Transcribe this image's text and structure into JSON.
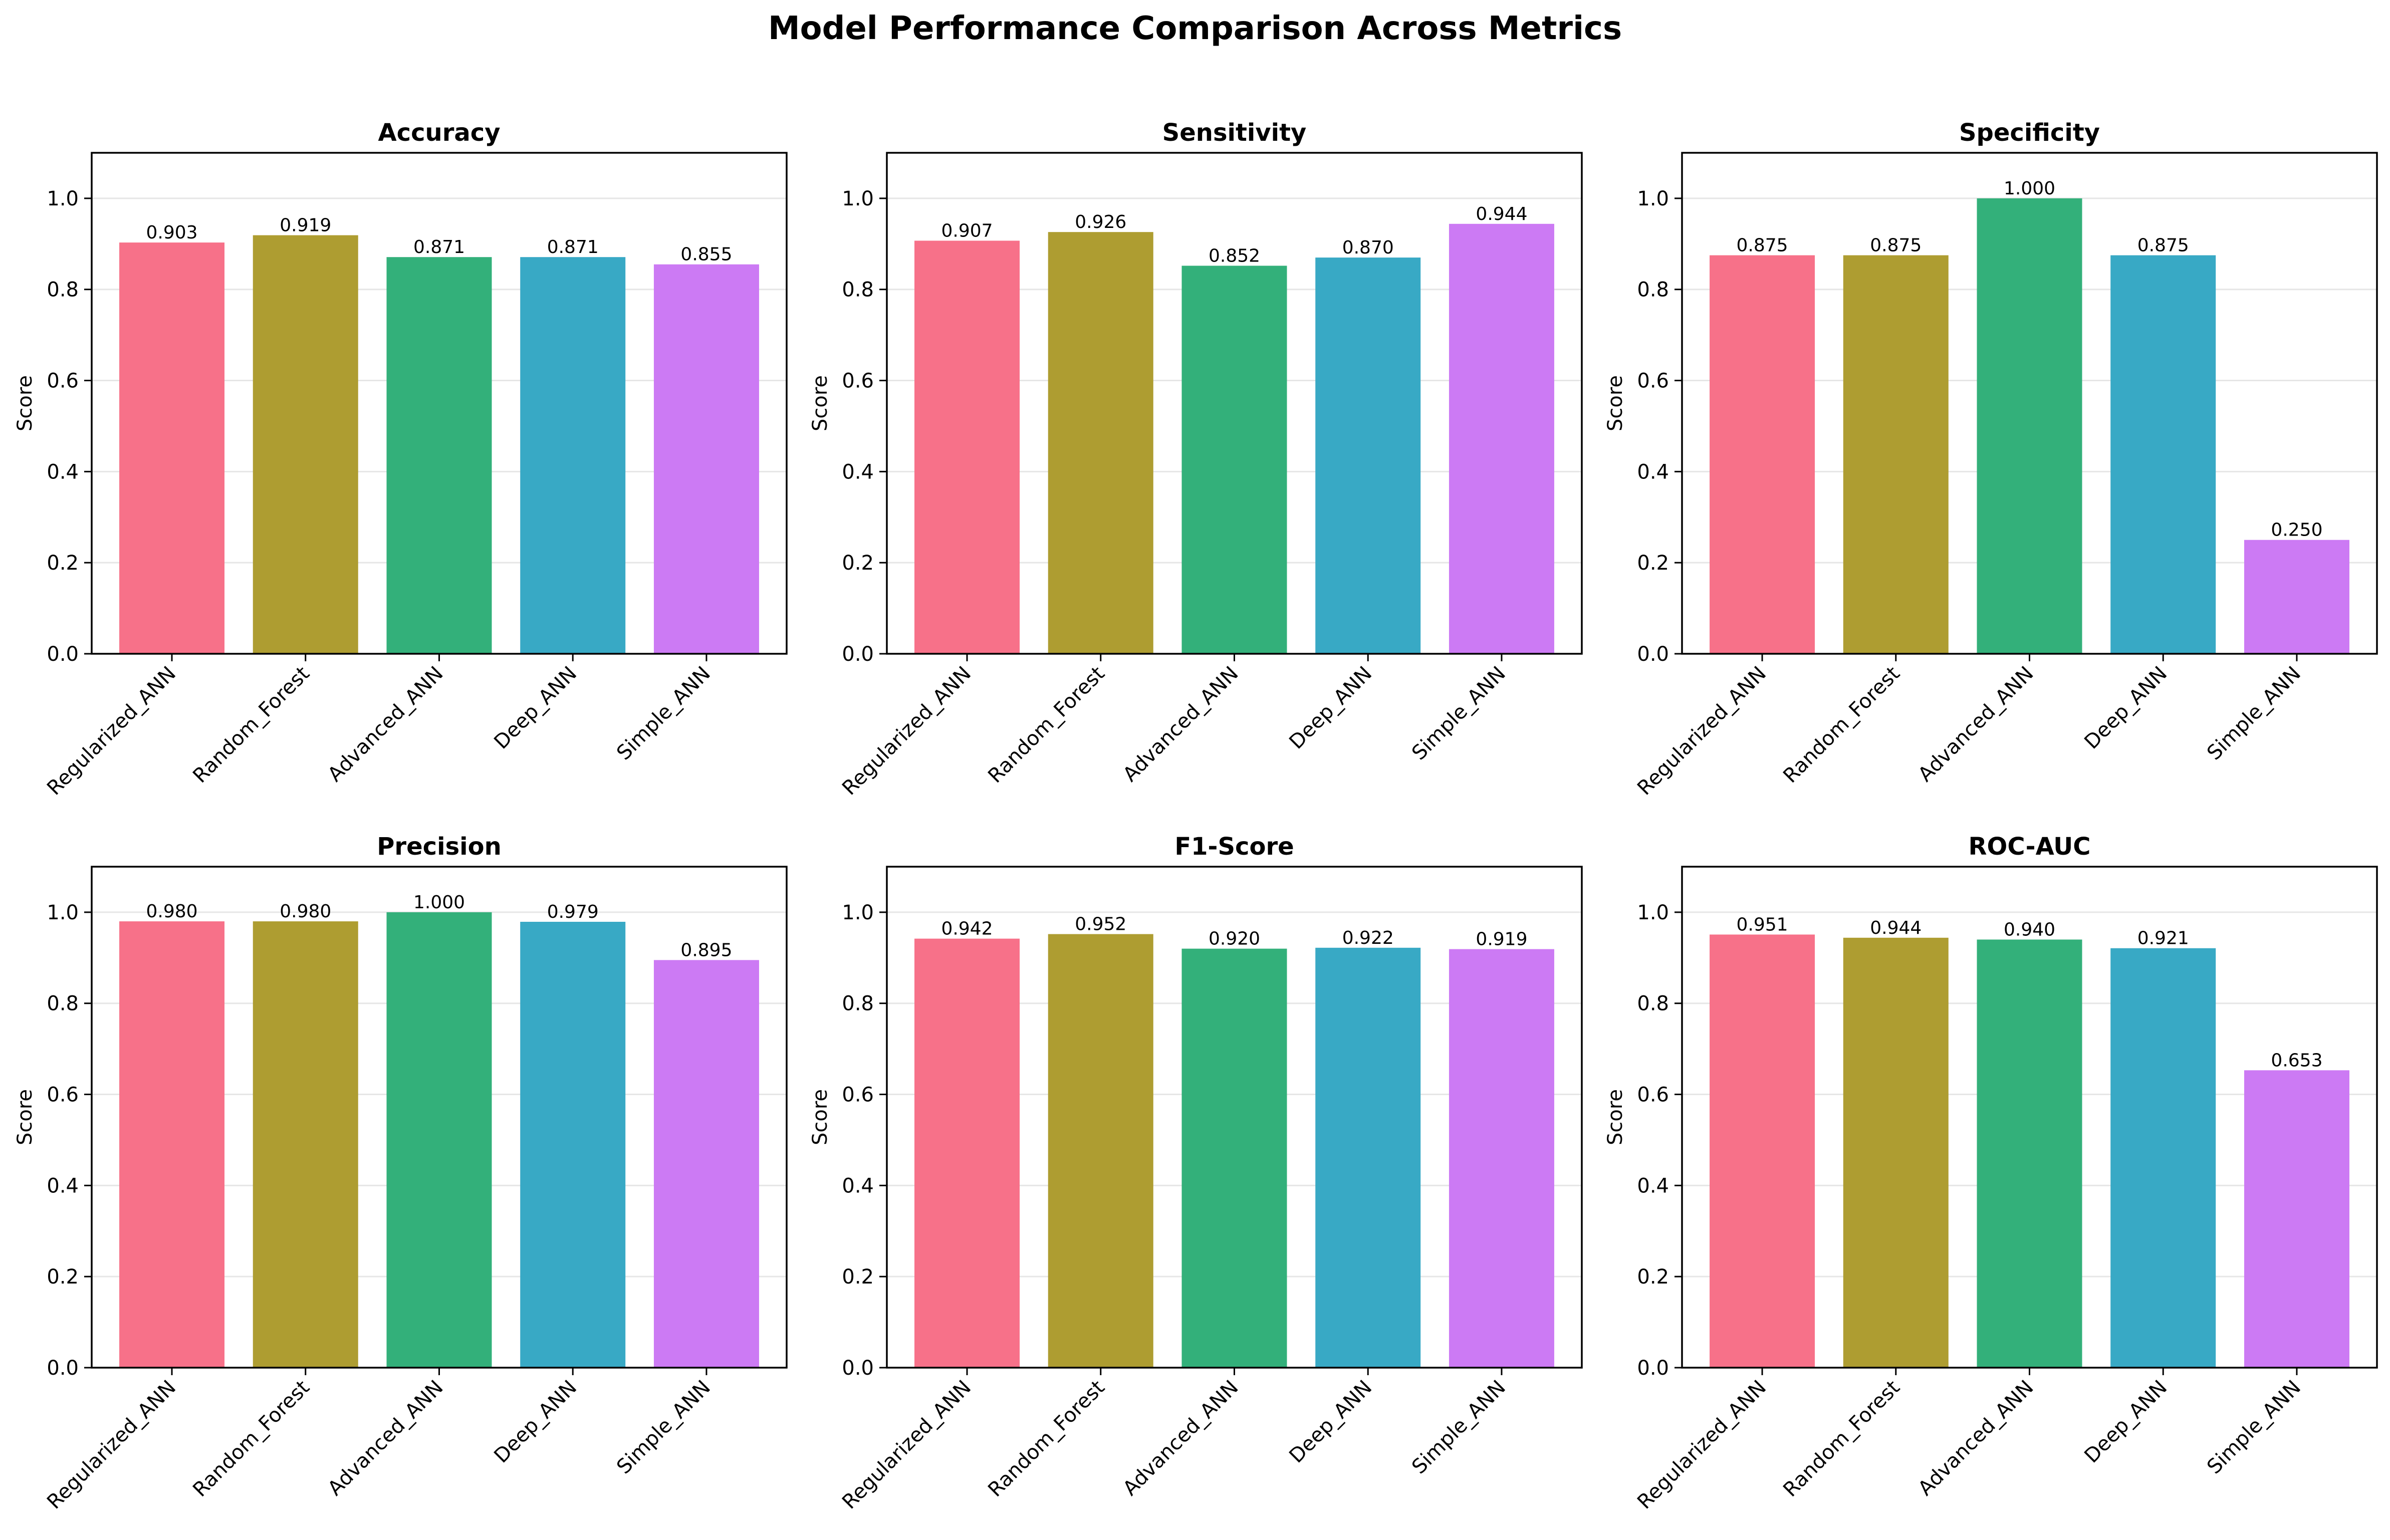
{
  "figure": {
    "suptitle": "Model Performance Comparison Across Metrics"
  },
  "style": {
    "bar_colors": [
      "#f77189",
      "#ae9d31",
      "#33b07a",
      "#38a9c5",
      "#cc7af4"
    ],
    "grid_color": "#e6e6e6",
    "axis_color": "#000000"
  },
  "chart_data": [
    {
      "type": "bar",
      "title": "Accuracy",
      "ylabel": "Score",
      "categories": [
        "Regularized_ANN",
        "Random_Forest",
        "Advanced_ANN",
        "Deep_ANN",
        "Simple_ANN"
      ],
      "values": [
        0.903,
        0.919,
        0.871,
        0.871,
        0.855
      ],
      "labels": [
        "0.903",
        "0.919",
        "0.871",
        "0.871",
        "0.855"
      ],
      "ylim": [
        0,
        1.1
      ],
      "yticks": [
        "0.0",
        "0.2",
        "0.4",
        "0.6",
        "0.8",
        "1.0"
      ],
      "grid": "y"
    },
    {
      "type": "bar",
      "title": "Sensitivity",
      "ylabel": "Score",
      "categories": [
        "Regularized_ANN",
        "Random_Forest",
        "Advanced_ANN",
        "Deep_ANN",
        "Simple_ANN"
      ],
      "values": [
        0.907,
        0.926,
        0.852,
        0.87,
        0.944
      ],
      "labels": [
        "0.907",
        "0.926",
        "0.852",
        "0.870",
        "0.944"
      ],
      "ylim": [
        0,
        1.1
      ],
      "yticks": [
        "0.0",
        "0.2",
        "0.4",
        "0.6",
        "0.8",
        "1.0"
      ],
      "grid": "y"
    },
    {
      "type": "bar",
      "title": "Specificity",
      "ylabel": "Score",
      "categories": [
        "Regularized_ANN",
        "Random_Forest",
        "Advanced_ANN",
        "Deep_ANN",
        "Simple_ANN"
      ],
      "values": [
        0.875,
        0.875,
        1.0,
        0.875,
        0.25
      ],
      "labels": [
        "0.875",
        "0.875",
        "1.000",
        "0.875",
        "0.250"
      ],
      "ylim": [
        0,
        1.1
      ],
      "yticks": [
        "0.0",
        "0.2",
        "0.4",
        "0.6",
        "0.8",
        "1.0"
      ],
      "grid": "y"
    },
    {
      "type": "bar",
      "title": "Precision",
      "ylabel": "Score",
      "categories": [
        "Regularized_ANN",
        "Random_Forest",
        "Advanced_ANN",
        "Deep_ANN",
        "Simple_ANN"
      ],
      "values": [
        0.98,
        0.98,
        1.0,
        0.979,
        0.895
      ],
      "labels": [
        "0.980",
        "0.980",
        "1.000",
        "0.979",
        "0.895"
      ],
      "ylim": [
        0,
        1.1
      ],
      "yticks": [
        "0.0",
        "0.2",
        "0.4",
        "0.6",
        "0.8",
        "1.0"
      ],
      "grid": "y"
    },
    {
      "type": "bar",
      "title": "F1-Score",
      "ylabel": "Score",
      "categories": [
        "Regularized_ANN",
        "Random_Forest",
        "Advanced_ANN",
        "Deep_ANN",
        "Simple_ANN"
      ],
      "values": [
        0.942,
        0.952,
        0.92,
        0.922,
        0.919
      ],
      "labels": [
        "0.942",
        "0.952",
        "0.920",
        "0.922",
        "0.919"
      ],
      "ylim": [
        0,
        1.1
      ],
      "yticks": [
        "0.0",
        "0.2",
        "0.4",
        "0.6",
        "0.8",
        "1.0"
      ],
      "grid": "y"
    },
    {
      "type": "bar",
      "title": "ROC-AUC",
      "ylabel": "Score",
      "categories": [
        "Regularized_ANN",
        "Random_Forest",
        "Advanced_ANN",
        "Deep_ANN",
        "Simple_ANN"
      ],
      "values": [
        0.951,
        0.944,
        0.94,
        0.921,
        0.653
      ],
      "labels": [
        "0.951",
        "0.944",
        "0.940",
        "0.921",
        "0.653"
      ],
      "ylim": [
        0,
        1.1
      ],
      "yticks": [
        "0.0",
        "0.2",
        "0.4",
        "0.6",
        "0.8",
        "1.0"
      ],
      "grid": "y"
    }
  ]
}
